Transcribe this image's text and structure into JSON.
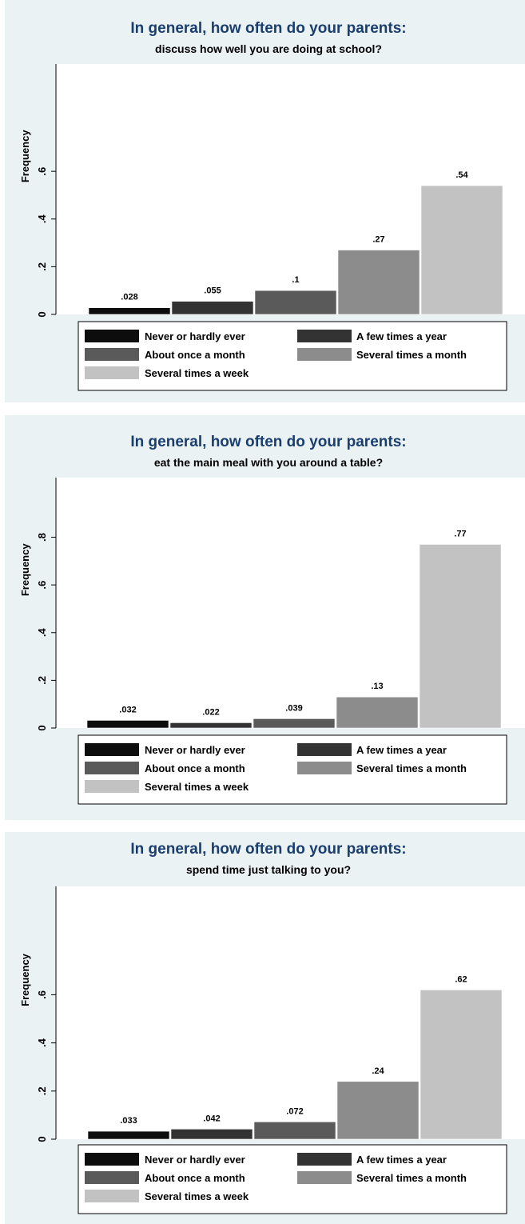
{
  "chart_data": [
    {
      "type": "bar",
      "title": "In general, how often do your parents:",
      "subtitle": "discuss how well you are doing at school?",
      "ylabel": "Frequency",
      "ylim": [
        0,
        1.05
      ],
      "yticks": [
        0,
        0.2,
        0.4,
        0.6
      ],
      "ytick_labels": [
        "0",
        ".2",
        ".4",
        ".6"
      ],
      "categories": [
        "Never or hardly ever",
        "A few times a year",
        "About once a month",
        "Several times a month",
        "Several times a week"
      ],
      "values": [
        0.028,
        0.055,
        0.1,
        0.27,
        0.54
      ],
      "value_labels": [
        ".028",
        ".055",
        ".1",
        ".27",
        ".54"
      ],
      "colors": [
        "#0d0d0d",
        "#333333",
        "#5a5a5a",
        "#8c8c8c",
        "#c2c2c2"
      ],
      "legend_position": "bottom",
      "grid": false
    },
    {
      "type": "bar",
      "title": "In general, how often do your parents:",
      "subtitle": "eat the main meal with you around a table?",
      "ylabel": "Frequency",
      "ylim": [
        0,
        1.05
      ],
      "yticks": [
        0,
        0.2,
        0.4,
        0.6,
        0.8
      ],
      "ytick_labels": [
        "0",
        ".2",
        ".4",
        ".6",
        ".8"
      ],
      "categories": [
        "Never or hardly ever",
        "A few times a year",
        "About once a month",
        "Several times a month",
        "Several times a week"
      ],
      "values": [
        0.032,
        0.022,
        0.039,
        0.13,
        0.77
      ],
      "value_labels": [
        ".032",
        ".022",
        ".039",
        ".13",
        ".77"
      ],
      "colors": [
        "#0d0d0d",
        "#333333",
        "#5a5a5a",
        "#8c8c8c",
        "#c2c2c2"
      ],
      "legend_position": "bottom",
      "grid": false
    },
    {
      "type": "bar",
      "title": "In general, how often do your parents:",
      "subtitle": "spend time just talking to you?",
      "ylabel": "Frequency",
      "ylim": [
        0,
        1.05
      ],
      "yticks": [
        0,
        0.2,
        0.4,
        0.6
      ],
      "ytick_labels": [
        "0",
        ".2",
        ".4",
        ".6"
      ],
      "categories": [
        "Never or hardly ever",
        "A few times a year",
        "About once a month",
        "Several times a month",
        "Several times a week"
      ],
      "values": [
        0.033,
        0.042,
        0.072,
        0.24,
        0.62
      ],
      "value_labels": [
        ".033",
        ".042",
        ".072",
        ".24",
        ".62"
      ],
      "colors": [
        "#0d0d0d",
        "#333333",
        "#5a5a5a",
        "#8c8c8c",
        "#c2c2c2"
      ],
      "legend_position": "bottom",
      "grid": false
    }
  ]
}
